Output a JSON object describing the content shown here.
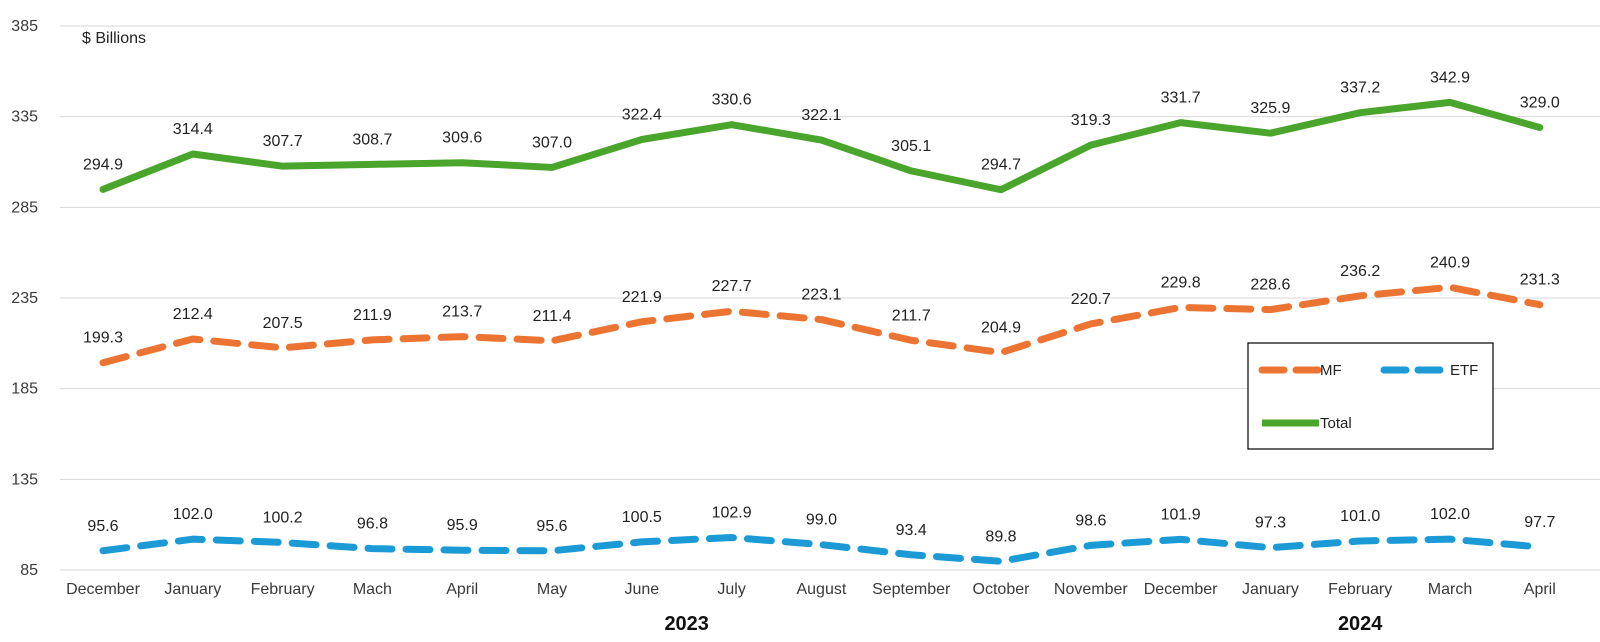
{
  "chart_data": {
    "type": "line",
    "unit_label": "$ Billions",
    "categories": [
      "December",
      "January",
      "February",
      "Mach",
      "April",
      "May",
      "June",
      "July",
      "August",
      "September",
      "October",
      "November",
      "December",
      "January",
      "February",
      "March",
      "April"
    ],
    "year_labels": [
      {
        "label": "2023",
        "under_index": 6.5
      },
      {
        "label": "2024",
        "under_index": 14
      }
    ],
    "ylim": [
      85,
      385
    ],
    "yticks": [
      85,
      135,
      185,
      235,
      285,
      335,
      385
    ],
    "grid": true,
    "legend_placement": "right",
    "series": [
      {
        "name": "Total",
        "color": "#4aa52c",
        "style": "solid",
        "values": [
          294.9,
          314.4,
          307.7,
          308.7,
          309.6,
          307.0,
          322.4,
          330.6,
          322.1,
          305.1,
          294.7,
          319.3,
          331.7,
          325.9,
          337.2,
          342.9,
          329.0
        ]
      },
      {
        "name": "MF",
        "color": "#ec7432",
        "style": "dashed",
        "values": [
          199.3,
          212.4,
          207.5,
          211.9,
          213.7,
          211.4,
          221.9,
          227.7,
          223.1,
          211.7,
          204.9,
          220.7,
          229.8,
          228.6,
          236.2,
          240.9,
          231.3
        ]
      },
      {
        "name": "ETF",
        "color": "#1b9ad6",
        "style": "dashed",
        "values": [
          95.6,
          102.0,
          100.2,
          96.8,
          95.9,
          95.6,
          100.5,
          102.9,
          99.0,
          93.4,
          89.8,
          98.6,
          101.9,
          97.3,
          101.0,
          102.0,
          97.7
        ]
      }
    ]
  }
}
